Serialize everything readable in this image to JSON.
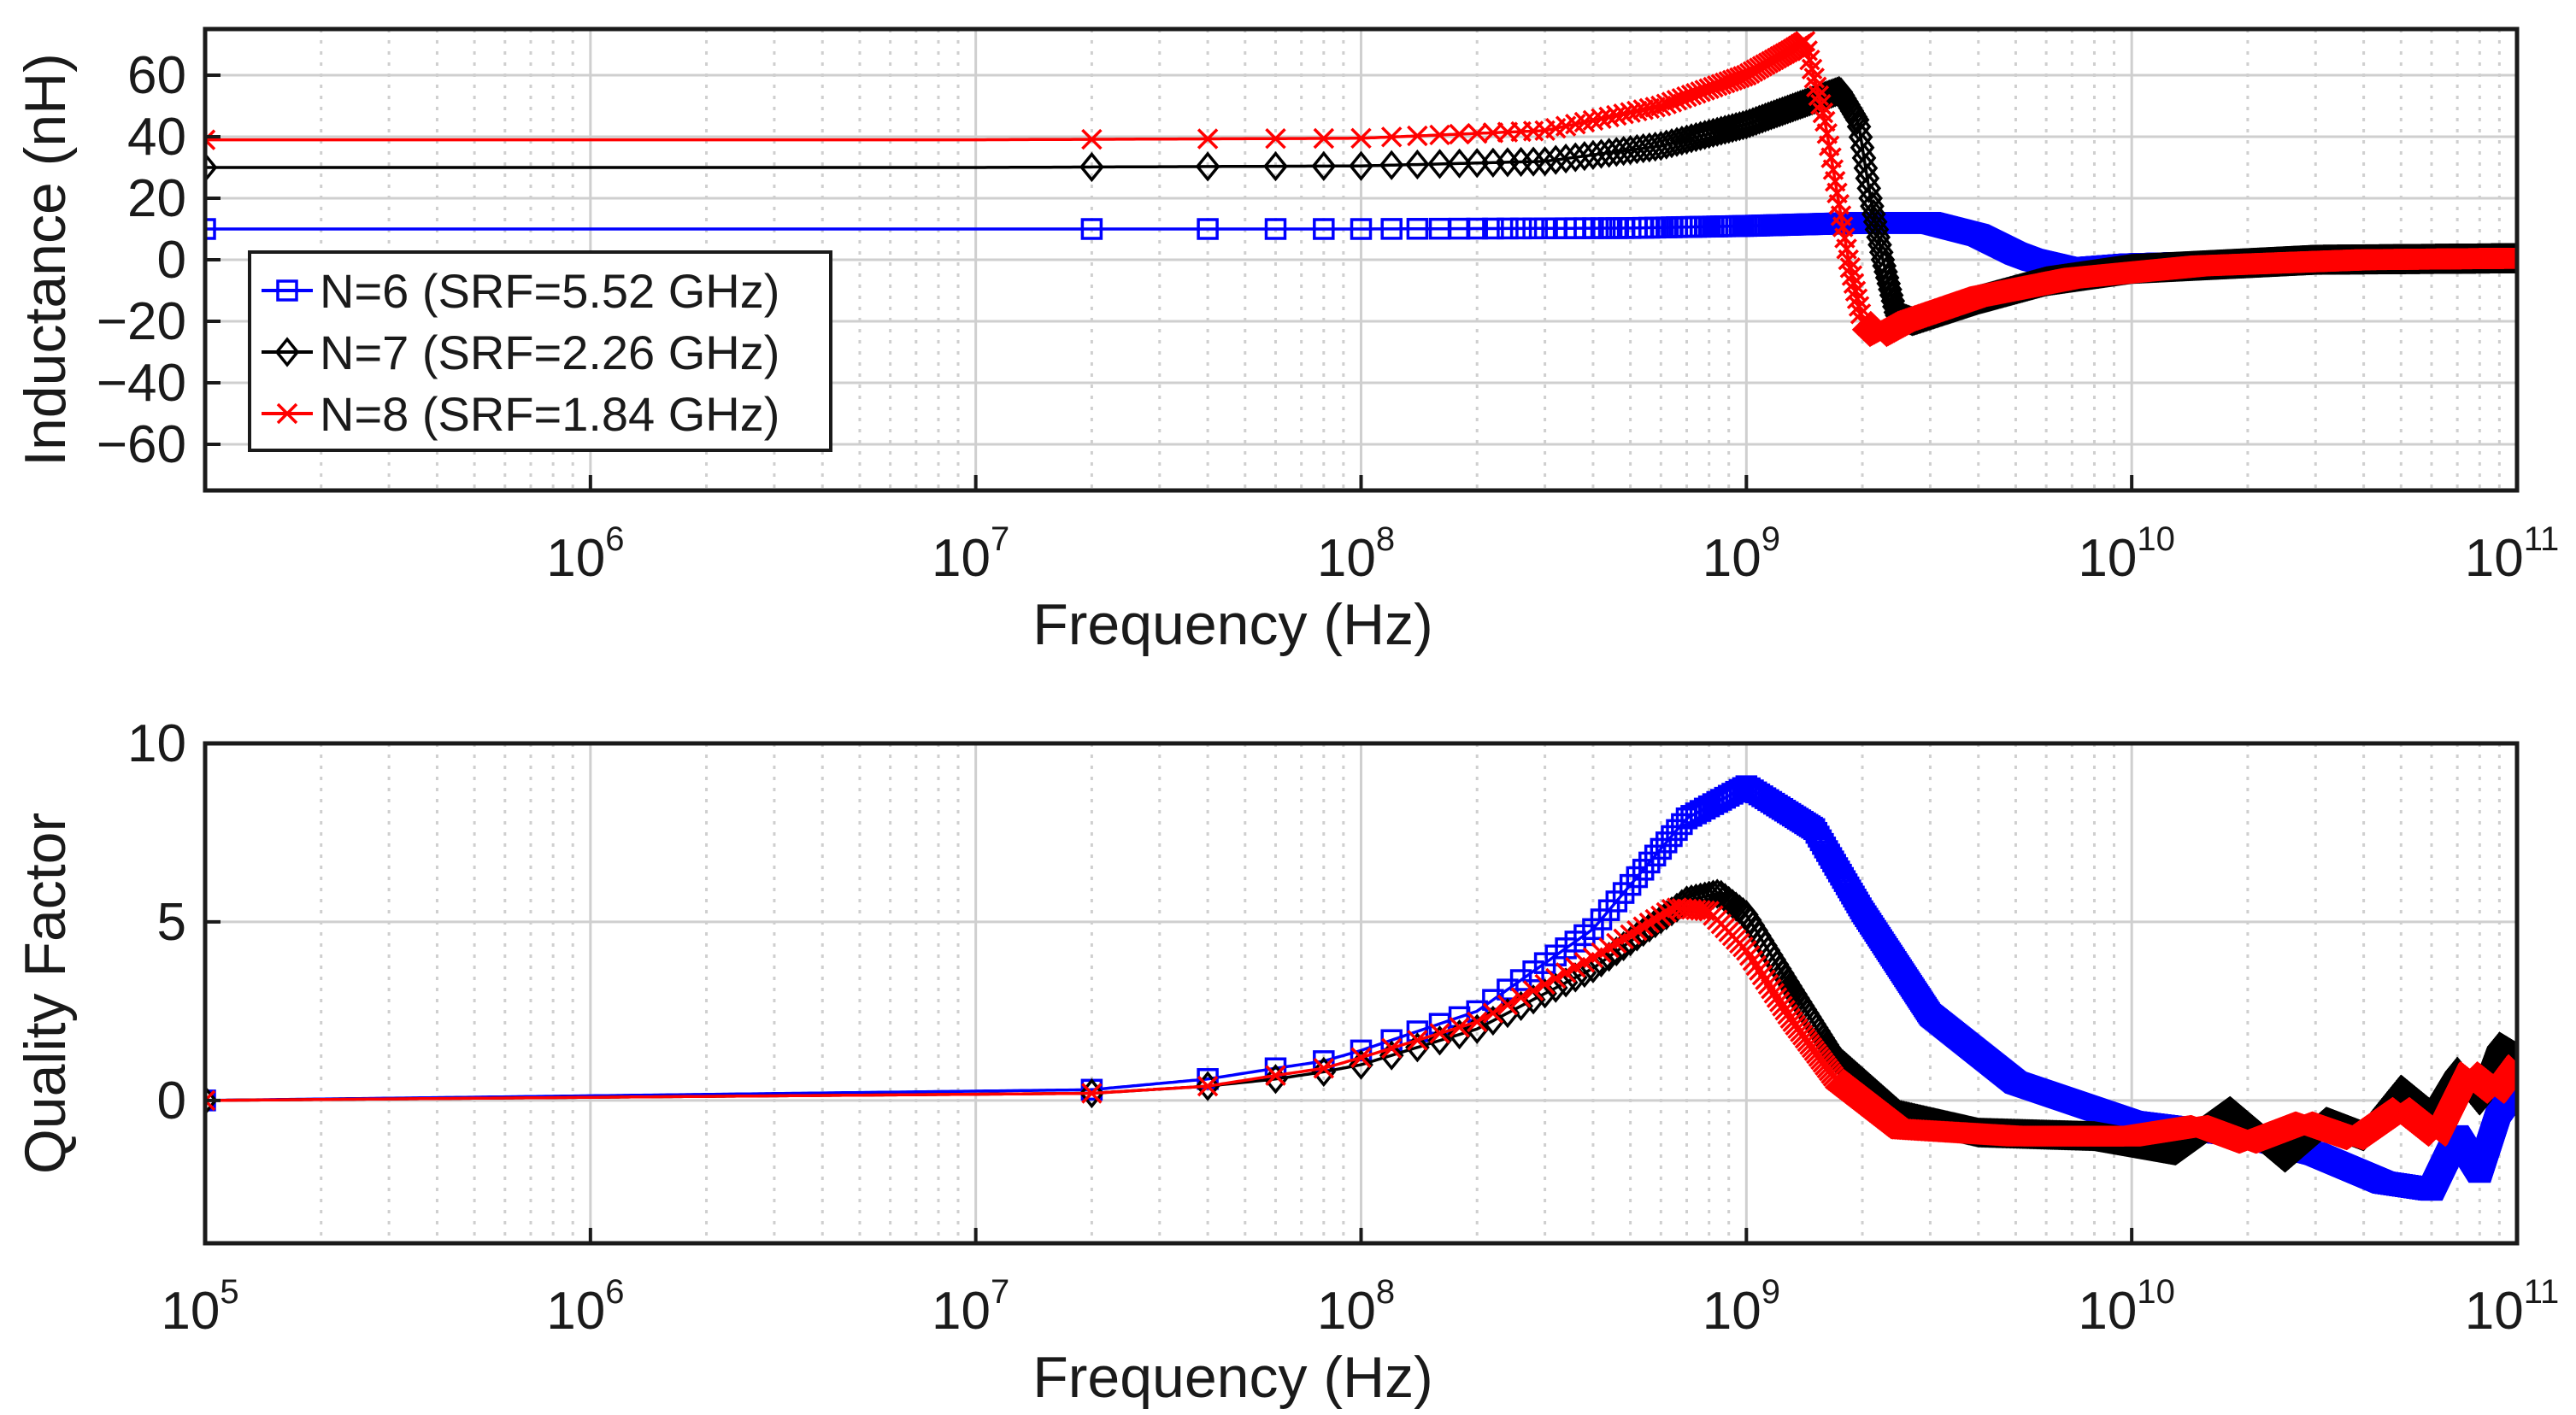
{
  "figure": {
    "background": "#ffffff",
    "colors": {
      "N6": "#0000ff",
      "N7": "#000000",
      "N8": "#ff0000",
      "grid": "#cfcfcf",
      "axes": "#1a1a1a"
    }
  },
  "chart_data": [
    {
      "type": "line",
      "id": "inductance",
      "title": "",
      "xlabel": "Frequency (Hz)",
      "ylabel": "Inductance (nH)",
      "xscale": "log",
      "xlim": [
        100000,
        100000000000
      ],
      "ylim": [
        -75,
        75
      ],
      "yticks": [
        60,
        40,
        20,
        0,
        -20,
        -40,
        -60
      ],
      "ytick_labels": [
        "60",
        "40",
        "20",
        "0",
        "−20",
        "−40",
        "−60"
      ],
      "xticks": [
        {
          "value": 1000000,
          "base": "10",
          "exp": "6"
        },
        {
          "value": 10000000,
          "base": "10",
          "exp": "7"
        },
        {
          "value": 100000000,
          "base": "10",
          "exp": "8"
        },
        {
          "value": 1000000000,
          "base": "10",
          "exp": "9"
        },
        {
          "value": 10000000000,
          "base": "10",
          "exp": "10"
        },
        {
          "value": 100000000000,
          "base": "10",
          "exp": "11"
        }
      ],
      "grid": true,
      "legend": "top-left",
      "series": [
        {
          "name": "N=6 (SRF=5.52 GHz)",
          "color": "#0000ff",
          "marker": "square",
          "points": [
            [
              100000,
              10
            ],
            [
              1000000,
              10
            ],
            [
              10000000,
              10
            ],
            [
              100000000,
              10
            ],
            [
              500000000,
              10.3
            ],
            [
              1000000000,
              11
            ],
            [
              2000000000,
              12
            ],
            [
              3000000000,
              12
            ],
            [
              4000000000,
              8
            ],
            [
              5000000000,
              2
            ],
            [
              5520000000,
              0
            ],
            [
              7000000000,
              -3
            ],
            [
              10000000000,
              -1.5
            ],
            [
              30000000000,
              0
            ],
            [
              100000000000,
              1
            ]
          ]
        },
        {
          "name": "N=7 (SRF=2.26 GHz)",
          "color": "#000000",
          "marker": "diamond",
          "points": [
            [
              100000,
              30
            ],
            [
              1000000,
              30
            ],
            [
              10000000,
              30
            ],
            [
              100000000,
              30.5
            ],
            [
              300000000,
              32
            ],
            [
              600000000,
              37
            ],
            [
              1000000000,
              44
            ],
            [
              1500000000,
              52
            ],
            [
              1750000000,
              55
            ],
            [
              1950000000,
              45
            ],
            [
              2100000000,
              20
            ],
            [
              2260000000,
              0
            ],
            [
              2450000000,
              -18
            ],
            [
              2700000000,
              -20
            ],
            [
              4000000000,
              -13
            ],
            [
              6000000000,
              -7
            ],
            [
              10000000000,
              -3
            ],
            [
              30000000000,
              0
            ],
            [
              100000000000,
              0.5
            ]
          ]
        },
        {
          "name": "N=8 (SRF=1.84 GHz)",
          "color": "#ff0000",
          "marker": "x",
          "points": [
            [
              100000,
              39
            ],
            [
              1000000,
              39
            ],
            [
              10000000,
              39
            ],
            [
              100000000,
              39.5
            ],
            [
              300000000,
              42
            ],
            [
              600000000,
              50
            ],
            [
              1000000000,
              60
            ],
            [
              1300000000,
              68
            ],
            [
              1420000000,
              71
            ],
            [
              1600000000,
              45
            ],
            [
              1840000000,
              0
            ],
            [
              2000000000,
              -20
            ],
            [
              2200000000,
              -25
            ],
            [
              2600000000,
              -20
            ],
            [
              4000000000,
              -12
            ],
            [
              7000000000,
              -6
            ],
            [
              15000000000,
              -2
            ],
            [
              40000000000,
              0
            ],
            [
              100000000000,
              0.5
            ]
          ]
        }
      ]
    },
    {
      "type": "line",
      "id": "quality-factor",
      "title": "",
      "xlabel": "Frequency (Hz)",
      "ylabel": "Quality Factor",
      "xscale": "log",
      "xlim": [
        100000,
        100000000000
      ],
      "ylim": [
        -4,
        10
      ],
      "yticks": [
        10,
        5,
        0
      ],
      "ytick_labels": [
        "10",
        "5",
        "0"
      ],
      "xticks": [
        {
          "value": 100000,
          "base": "10",
          "exp": "5"
        },
        {
          "value": 1000000,
          "base": "10",
          "exp": "6"
        },
        {
          "value": 10000000,
          "base": "10",
          "exp": "7"
        },
        {
          "value": 100000000,
          "base": "10",
          "exp": "8"
        },
        {
          "value": 1000000000,
          "base": "10",
          "exp": "9"
        },
        {
          "value": 10000000000,
          "base": "10",
          "exp": "10"
        },
        {
          "value": 100000000000,
          "base": "10",
          "exp": "11"
        }
      ],
      "grid": true,
      "series": [
        {
          "color": "#0000ff",
          "marker": "square",
          "points": [
            [
              100000,
              0
            ],
            [
              20000000,
              0.3
            ],
            [
              40000000,
              0.6
            ],
            [
              60000000,
              0.9
            ],
            [
              80000000,
              1.1
            ],
            [
              100000000,
              1.4
            ],
            [
              200000000,
              2.5
            ],
            [
              400000000,
              4.8
            ],
            [
              700000000,
              7.9
            ],
            [
              1000000000,
              8.8
            ],
            [
              1500000000,
              7.6
            ],
            [
              2000000000,
              5.3
            ],
            [
              3000000000,
              2.4
            ],
            [
              5000000000,
              0.5
            ],
            [
              10000000000,
              -0.6
            ],
            [
              20000000000,
              -1.0
            ],
            [
              30000000000,
              -1.5
            ],
            [
              45000000000,
              -2.3
            ],
            [
              60000000000,
              -2.5
            ],
            [
              70000000000,
              -1.0
            ],
            [
              80000000000,
              -2.0
            ],
            [
              90000000000,
              -0.3
            ],
            [
              100000000000,
              0.4
            ]
          ]
        },
        {
          "color": "#000000",
          "marker": "diamond",
          "points": [
            [
              100000,
              0
            ],
            [
              20000000,
              0.2
            ],
            [
              40000000,
              0.4
            ],
            [
              60000000,
              0.6
            ],
            [
              80000000,
              0.8
            ],
            [
              100000000,
              1.0
            ],
            [
              200000000,
              2.0
            ],
            [
              400000000,
              3.7
            ],
            [
              700000000,
              5.6
            ],
            [
              850000000,
              5.8
            ],
            [
              1000000000,
              5.2
            ],
            [
              1300000000,
              3.2
            ],
            [
              1700000000,
              1.2
            ],
            [
              2500000000,
              -0.4
            ],
            [
              4000000000,
              -0.9
            ],
            [
              8000000000,
              -1.0
            ],
            [
              13000000000,
              -1.4
            ],
            [
              18000000000,
              -0.3
            ],
            [
              25000000000,
              -1.6
            ],
            [
              32000000000,
              -0.6
            ],
            [
              40000000000,
              -1.0
            ],
            [
              50000000000,
              0.3
            ],
            [
              60000000000,
              -0.4
            ],
            [
              70000000000,
              0.8
            ],
            [
              80000000000,
              0.0
            ],
            [
              90000000000,
              1.5
            ],
            [
              100000000000,
              1.2
            ]
          ]
        },
        {
          "color": "#ff0000",
          "marker": "x",
          "points": [
            [
              100000,
              0
            ],
            [
              20000000,
              0.2
            ],
            [
              40000000,
              0.4
            ],
            [
              60000000,
              0.7
            ],
            [
              80000000,
              0.9
            ],
            [
              100000000,
              1.2
            ],
            [
              200000000,
              2.2
            ],
            [
              400000000,
              4.0
            ],
            [
              650000000,
              5.4
            ],
            [
              800000000,
              5.3
            ],
            [
              1000000000,
              4.2
            ],
            [
              1300000000,
              2.3
            ],
            [
              1700000000,
              0.6
            ],
            [
              2500000000,
              -0.8
            ],
            [
              5000000000,
              -1.0
            ],
            [
              10000000000,
              -1.0
            ],
            [
              15000000000,
              -0.7
            ],
            [
              20000000000,
              -1.2
            ],
            [
              28000000000,
              -0.6
            ],
            [
              38000000000,
              -1.1
            ],
            [
              50000000000,
              -0.2
            ],
            [
              62000000000,
              -1.0
            ],
            [
              75000000000,
              0.8
            ],
            [
              88000000000,
              0.2
            ],
            [
              100000000000,
              1.0
            ]
          ]
        }
      ]
    }
  ]
}
